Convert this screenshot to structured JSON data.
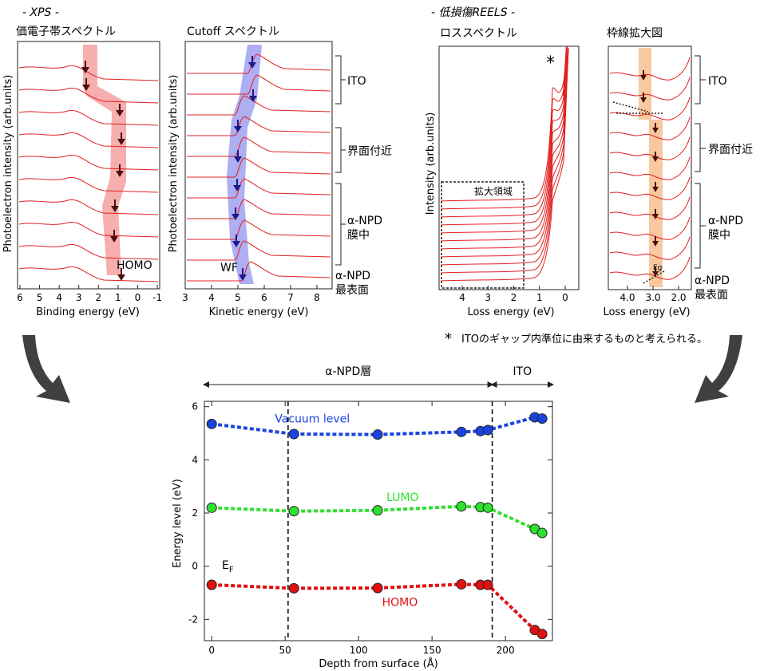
{
  "xps": {
    "section_title": "- XPS -",
    "valence": {
      "title": "価電子帯スペクトル",
      "ylabel": "Photoelectron intensity (arb.units)",
      "xlabel": "Binding energy (eV)",
      "xticks": [
        "6",
        "5",
        "4",
        "3",
        "2",
        "1",
        "0",
        "-1"
      ],
      "annotation": "HOMO"
    },
    "cutoff": {
      "title": "Cutoff スペクトル",
      "ylabel": "Photoelectron intensity (arb.units)",
      "xlabel": "Kinetic energy (eV)",
      "xticks": [
        "3",
        "4",
        "5",
        "6",
        "7",
        "8"
      ],
      "annotation": "WF"
    },
    "groups": [
      "ITO",
      "界面付近",
      "α-NPD\n膜中",
      "α-NPD\n最表面"
    ]
  },
  "reels": {
    "section_title": "- 低損傷REELS -",
    "loss": {
      "title": "ロススペクトル",
      "ylabel": "Intensity (arb.units)",
      "xlabel": "Loss energy (eV)",
      "xticks": [
        "4",
        "3",
        "2",
        "1",
        "0"
      ],
      "box_label": "拡大領域",
      "asterisk": "*"
    },
    "zoom": {
      "title": "枠線拡大図",
      "xlabel": "Loss energy (eV)",
      "xticks": [
        "4.0",
        "3.0",
        "2.0"
      ],
      "annotation": "Eg"
    },
    "groups": [
      "ITO",
      "界面付近",
      "α-NPD\n膜中",
      "α-NPD\n最表面"
    ],
    "footnote_mark": "*",
    "footnote": "ITOのギャップ内準位に由来するものと考えられる。"
  },
  "colors": {
    "spectrum": "#e02020",
    "homo_band": "#f4a0a0",
    "wf_band": "#a0a0f0",
    "eg_band": "#f8c8a0",
    "arrow": "#4a1010",
    "vacuum": "#1a44e0",
    "lumo": "#30e030",
    "homo": "#e01010",
    "curved_arrow": "#404040"
  },
  "chart_data": {
    "type": "scatter",
    "title": "",
    "xlabel": "Depth from surface (Å)",
    "ylabel": "Energy level (eV)",
    "xlim": [
      -5,
      232
    ],
    "ylim": [
      -2.8,
      6.2
    ],
    "xticks": [
      0,
      50,
      100,
      150,
      200
    ],
    "yticks": [
      6,
      4,
      2,
      0,
      -2
    ],
    "x": [
      0,
      56,
      113,
      170,
      183,
      188,
      220,
      225
    ],
    "series": [
      {
        "name": "Vacuum level",
        "color": "#1a44e0",
        "values": [
          5.35,
          4.97,
          4.95,
          5.05,
          5.08,
          5.12,
          5.6,
          5.55
        ]
      },
      {
        "name": "LUMO",
        "color": "#30e030",
        "values": [
          2.2,
          2.07,
          2.1,
          2.25,
          2.22,
          2.2,
          1.4,
          1.25
        ]
      },
      {
        "name": "HOMO",
        "color": "#e01010",
        "values": [
          -0.7,
          -0.83,
          -0.82,
          -0.68,
          -0.7,
          -0.7,
          -2.4,
          -2.55
        ]
      }
    ],
    "ef_label": "E",
    "ef_sub": "F",
    "boundaries": [
      52,
      191
    ],
    "regions": [
      {
        "label": "α-NPD層",
        "from": -5,
        "to": 191
      },
      {
        "label": "ITO",
        "from": 191,
        "to": 232
      }
    ]
  }
}
